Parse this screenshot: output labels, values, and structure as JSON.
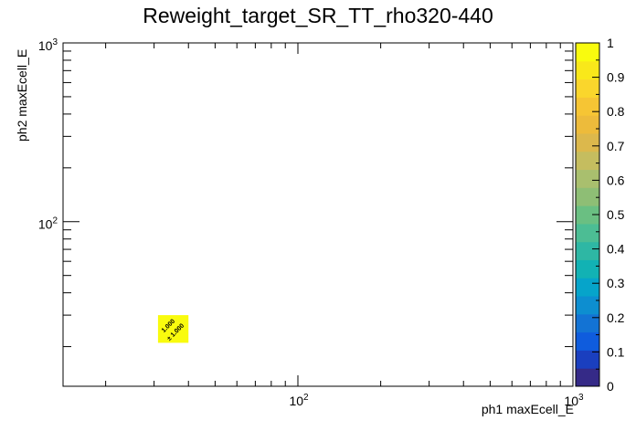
{
  "chart_data": {
    "type": "heatmap",
    "title": "Reweight_target_SR_TT_rho320-440",
    "xlabel": "ph1 maxEcell_E",
    "ylabel": "ph2 maxEcell_E",
    "x_scale": "log",
    "y_scale": "log",
    "xlim": [
      14,
      1000
    ],
    "ylim": [
      12,
      1000
    ],
    "x_tick_labels": [
      "10^2",
      "10^3"
    ],
    "y_tick_labels": [
      "10^2",
      "10^3"
    ],
    "cells": [
      {
        "x_range": [
          31,
          40
        ],
        "y_range": [
          21,
          30
        ],
        "value": 1.0,
        "label": "1.000",
        "error_label": "± 1.000"
      }
    ],
    "colorbar": {
      "min": 0,
      "max": 1,
      "tick_labels": [
        "0",
        "0.1",
        "0.2",
        "0.3",
        "0.4",
        "0.5",
        "0.6",
        "0.7",
        "0.8",
        "0.9",
        "1"
      ],
      "colors": [
        "#352a87",
        "#1a3fbf",
        "#0f5cdd",
        "#1373d4",
        "#0d8ed0",
        "#06a4ca",
        "#12b2b4",
        "#2eb7a4",
        "#4cbd94",
        "#6abf82",
        "#8ebe75",
        "#a9bf6e",
        "#c5bd5f",
        "#dcb84c",
        "#edbb3b",
        "#f6c534",
        "#fad62c",
        "#f9e81a",
        "#f9fb0e"
      ]
    },
    "legend": "none",
    "grid": false
  }
}
